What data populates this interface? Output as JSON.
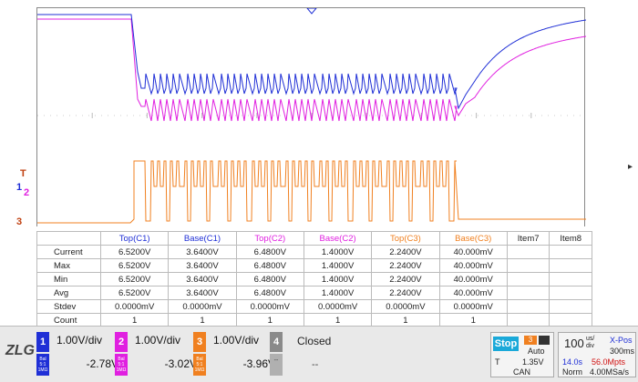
{
  "colors": {
    "ch1": "#1f2fd6",
    "ch2": "#e020e0",
    "ch3": "#f08020",
    "ch4": "#8a8a8a",
    "stop": "#1aa9d9",
    "red": "#d01010"
  },
  "markers": {
    "trigger": "T",
    "ch1": "1",
    "ch2": "2",
    "ch3": "3"
  },
  "table": {
    "headers": [
      "",
      "Top(C1)",
      "Base(C1)",
      "Top(C2)",
      "Base(C2)",
      "Top(C3)",
      "Base(C3)",
      "Item7",
      "Item8"
    ],
    "header_colors": [
      "#222",
      "#1f2fd6",
      "#1f2fd6",
      "#e020e0",
      "#e020e0",
      "#f08020",
      "#f08020",
      "#222",
      "#222"
    ],
    "rows": [
      [
        "Current",
        "6.5200V",
        "3.6400V",
        "6.4800V",
        "1.4000V",
        "2.2400V",
        "40.000mV",
        "",
        ""
      ],
      [
        "Max",
        "6.5200V",
        "3.6400V",
        "6.4800V",
        "1.4000V",
        "2.2400V",
        "40.000mV",
        "",
        ""
      ],
      [
        "Min",
        "6.5200V",
        "3.6400V",
        "6.4800V",
        "1.4000V",
        "2.2400V",
        "40.000mV",
        "",
        ""
      ],
      [
        "Avg",
        "6.5200V",
        "3.6400V",
        "6.4800V",
        "1.4000V",
        "2.2400V",
        "40.000mV",
        "",
        ""
      ],
      [
        "Stdev",
        "0.0000mV",
        "0.0000mV",
        "0.0000mV",
        "0.0000mV",
        "0.0000mV",
        "0.0000mV",
        "",
        ""
      ],
      [
        "Count",
        "1",
        "1",
        "1",
        "1",
        "1",
        "1",
        "",
        ""
      ]
    ]
  },
  "statusbar": {
    "logo": "ZLG",
    "ch1": {
      "num": "1",
      "vdiv": "1.00V/div",
      "offset": "-2.78V",
      "sub": "Bal 5:1 1MΩ"
    },
    "ch2": {
      "num": "2",
      "vdiv": "1.00V/div",
      "offset": "-3.02V",
      "sub": "Bal 5:1 1MΩ"
    },
    "ch3": {
      "num": "3",
      "vdiv": "1.00V/div",
      "offset": "-3.96V",
      "sub": "Bal 5:1 1MΩ"
    },
    "ch4": {
      "num": "4",
      "label": "Closed",
      "dash1": "--",
      "dash2": "--"
    },
    "trigger": {
      "state": "Stop",
      "source": "3",
      "mode": "Auto",
      "t_label": "T",
      "level": "1.35V",
      "type": "CAN"
    },
    "timebase": {
      "value": "100",
      "unit_top": "us/",
      "unit_bot": "div",
      "xpos_label": "X-Pos",
      "xpos": "300ms",
      "len": "14.0s",
      "rate": "56.0Mpts",
      "norm": "Norm",
      "srate": "4.00MSa/s"
    }
  }
}
